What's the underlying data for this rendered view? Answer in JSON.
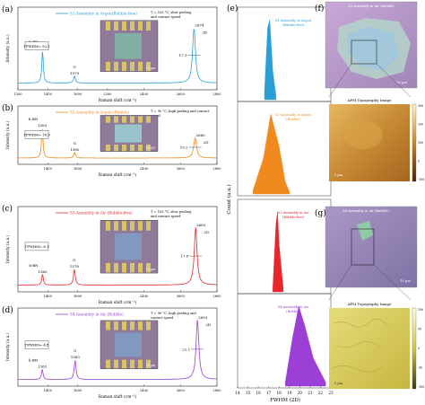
{
  "panels": {
    "a": {
      "letter": "(a)",
      "legend": "S1-Assembly in Argon(Bubble-free)",
      "condition": [
        "T = 105 °C, slow peeling",
        "and contact speed"
      ],
      "fwhm": "ΓFWHM= 92.1",
      "peak_labels": [
        "h-BN",
        "1365",
        "G",
        "1579",
        "2D",
        "2674"
      ],
      "arrow_label": "17.1",
      "ylabel": "Intensity (a.u.)",
      "xlabel": "Raman shift (cm⁻¹)",
      "xticks": [
        "1200",
        "1400",
        "1600",
        "2200",
        "2400",
        "2600",
        "2800"
      ],
      "scale": "10 µm",
      "color": "#2a9fd6"
    },
    "b": {
      "letter": "(b)",
      "legend": "S2-Assembly in Argon (Bubble)",
      "condition": [
        "T = 90 °C, high peeling and contact",
        "speed"
      ],
      "fwhm": "ΓFWHM= 18.9",
      "peak_labels": [
        "1363",
        "h-BN",
        "G",
        "1580",
        "2D",
        "2680"
      ],
      "arrow_label": "19.2",
      "ylabel": "Intensity (a.u.)",
      "xlabel": "Raman shift (cm⁻¹)",
      "xticks": [
        "1400",
        "1600",
        "2400",
        "2600",
        "2800"
      ],
      "scale": "10 µm",
      "color": "#f08a1e"
    },
    "c": {
      "letter": "(c)",
      "legend": "S3-Assembly in Air (Bubble-free)",
      "condition": [
        "T = 105 °C, slow peeling",
        "and contact speed"
      ],
      "fwhm": "ΓFWHM= 8.1",
      "peak_labels": [
        "1365",
        "h-BN",
        "G",
        "1578",
        "2D",
        "2683"
      ],
      "arrow_label": "17.8",
      "ylabel": "Intensity (a.u.)",
      "xlabel": "Raman shift (cm⁻¹)",
      "xticks": [
        "1400",
        "1600",
        "2400",
        "2600",
        "2800"
      ],
      "scale": "10 µm",
      "color": "#e8262b"
    },
    "d": {
      "letter": "(d)",
      "legend": "S4-Assembly in Air (Bubble)",
      "condition": [
        "T = 90 °C, high peeling and",
        "contact speed"
      ],
      "fwhm": "ΓFWHM= 4.8",
      "peak_labels": [
        "1363",
        "h-BN",
        "G",
        "1583",
        "2D",
        "2693"
      ],
      "arrow_label": "22.1",
      "ylabel": "Intensity (a.u.)",
      "xlabel": "Raman shift (cm⁻¹)",
      "xticks": [
        "1400",
        "1600",
        "2400",
        "2600",
        "2800"
      ],
      "scale": "10 µm",
      "color": "#9b3fd6"
    },
    "e": {
      "letter": "(e)",
      "ylabel": "Count (a.u.)",
      "xlabel": "FWHM (2D)",
      "xticks": [
        "14",
        "15",
        "16",
        "17",
        "18",
        "19",
        "20",
        "21",
        "22",
        "23"
      ],
      "labels": [
        [
          "S1-Assembly in Argon",
          "(Bubble-free)"
        ],
        [
          "S2-Assembly in Argon",
          "(Bubble)"
        ],
        [
          "S3-Assembly in Air",
          "(Bubble-free)"
        ],
        [
          "S4-Assembly in Air",
          "(Bubble)"
        ]
      ]
    },
    "f": {
      "letter": "(f)",
      "title": "S2-Assembly in Air (Bubble)",
      "scale_top": "20 µm",
      "afm_title": "AFM Topography Image",
      "scale_bottom": "5 µm",
      "colorbar_ticks": [
        "300",
        "200",
        "100",
        "0",
        "-100"
      ]
    },
    "g": {
      "letter": "(g)",
      "title": "S4-Assembly in Air (Bubble)",
      "scale_top": "10 µm",
      "afm_title": "AFM Topography Image",
      "scale_bottom": "5 µm",
      "colorbar_ticks": [
        "100",
        "50",
        "0",
        "-50",
        "-100"
      ]
    }
  },
  "chart_data": [
    {
      "type": "line",
      "panel": "a",
      "title": "S1-Assembly in Argon(Bubble-free)",
      "xlabel": "Raman shift (cm⁻¹)",
      "ylabel": "Intensity (a.u.)",
      "xlim": [
        1200,
        2800
      ],
      "peaks": [
        {
          "label": "h-BN",
          "x": 1365
        },
        {
          "label": "G",
          "x": 1579
        },
        {
          "label": "2D",
          "x": 2674
        }
      ],
      "fwhm_2d": 17.1
    },
    {
      "type": "line",
      "panel": "b",
      "title": "S2-Assembly in Argon (Bubble)",
      "xlabel": "Raman shift (cm⁻¹)",
      "ylabel": "Intensity (a.u.)",
      "xlim": [
        1200,
        2800
      ],
      "peaks": [
        {
          "label": "h-BN",
          "x": 1363
        },
        {
          "label": "G",
          "x": 1580
        },
        {
          "label": "2D",
          "x": 2680
        }
      ],
      "fwhm_2d": 19.2
    },
    {
      "type": "line",
      "panel": "c",
      "title": "S3-Assembly in Air (Bubble-free)",
      "xlabel": "Raman shift (cm⁻¹)",
      "ylabel": "Intensity (a.u.)",
      "xlim": [
        1200,
        2800
      ],
      "peaks": [
        {
          "label": "h-BN",
          "x": 1365
        },
        {
          "label": "G",
          "x": 1578
        },
        {
          "label": "2D",
          "x": 2683
        }
      ],
      "fwhm_2d": 17.8
    },
    {
      "type": "line",
      "panel": "d",
      "title": "S4-Assembly in Air (Bubble)",
      "xlabel": "Raman shift (cm⁻¹)",
      "ylabel": "Intensity (a.u.)",
      "xlim": [
        1200,
        2800
      ],
      "peaks": [
        {
          "label": "h-BN",
          "x": 1363
        },
        {
          "label": "G",
          "x": 1583
        },
        {
          "label": "2D",
          "x": 2693
        }
      ],
      "fwhm_2d": 22.1
    },
    {
      "type": "area",
      "panel": "e",
      "xlabel": "FWHM (2D)",
      "ylabel": "Count (a.u.)",
      "xlim": [
        14,
        23
      ],
      "series": [
        {
          "name": "S1-Assembly in Argon (Bubble-free)",
          "color": "#2a9fd6",
          "x": [
            16.6,
            16.9,
            17.1,
            17.4,
            17.7
          ],
          "y": [
            0.1,
            0.9,
            1.0,
            0.35,
            0.05
          ]
        },
        {
          "name": "S2-Assembly in Argon (Bubble)",
          "color": "#f08a1e",
          "x": [
            15.5,
            16.5,
            17.2,
            18.0,
            18.6,
            19.0
          ],
          "y": [
            0.05,
            0.45,
            1.0,
            0.6,
            0.15,
            0.03
          ]
        },
        {
          "name": "S3-Assembly in Air (Bubble-free)",
          "color": "#e8262b",
          "x": [
            17.4,
            17.7,
            17.85,
            18.0,
            18.4
          ],
          "y": [
            0.05,
            0.85,
            1.0,
            0.6,
            0.05
          ]
        },
        {
          "name": "S4-Assembly in Air (Bubble)",
          "color": "#9b3fd6",
          "x": [
            18.6,
            19.3,
            19.9,
            20.5,
            21.3,
            22.5
          ],
          "y": [
            0.05,
            0.6,
            1.0,
            0.75,
            0.35,
            0.05
          ]
        }
      ]
    }
  ]
}
